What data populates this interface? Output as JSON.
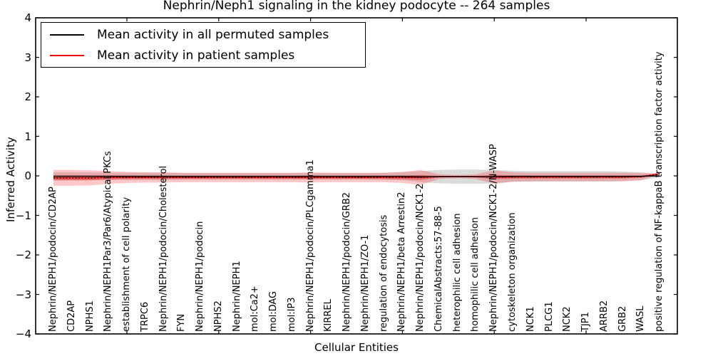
{
  "figure": {
    "title": "Nephrin/Neph1 signaling in the kidney podocyte -- 264 samples",
    "background": "#ffffff"
  },
  "legend": {
    "position": "upper left",
    "entries": [
      {
        "label": "Mean activity in all permuted samples",
        "color": "#000000"
      },
      {
        "label": "Mean activity in patient samples",
        "color": "#ff0000"
      }
    ]
  },
  "axes": {
    "ylabel": "Inferred Activity",
    "xlabel": "Cellular Entities",
    "ytick_labels": [
      "4",
      "3",
      "2",
      "1",
      "0",
      "−1",
      "−2",
      "−3",
      "−4"
    ],
    "frame_color": "#000000"
  },
  "colors": {
    "patient_line": "#ff0000",
    "permuted_line": "#000000",
    "zero_dotted_line": "#000000",
    "patient_band_outer": "rgba(255,0,0,0.22)",
    "patient_band_core": "rgba(235,0,0,0.38)",
    "permuted_band": "rgba(110,110,110,0.25)"
  },
  "chart_data": {
    "type": "line",
    "title": "Nephrin/Neph1 signaling in the kidney podocyte -- 264 samples",
    "xlabel": "Cellular Entities",
    "ylabel": "Inferred Activity",
    "ylim": [
      -4,
      4
    ],
    "yticks": [
      4,
      3,
      2,
      1,
      0,
      -1,
      -2,
      -3,
      -4
    ],
    "xtick_major_indices": [
      4,
      9,
      14,
      19,
      24,
      29
    ],
    "grid": false,
    "legend_position": "upper left",
    "n_points": 34,
    "categories": [
      "Nephrin/NEPH1/podocin/CD2AP",
      "CD2AP",
      "NPHS1",
      "Nephrin/NEPH1Par3/Par6/Atypical PKCs",
      "establishment of cell polarity",
      "TRPC6",
      "Nephrin/NEPH1/podocin/Cholesterol",
      "FYN",
      "Nephrin/NEPH1/podocin",
      "NPHS2",
      "Nephrin/NEPH1",
      "mol:Ca2+",
      "mol:DAG",
      "mol:IP3",
      "Nephrin/NEPH1/podocin/PLCgamma1",
      "KIRREL",
      "Nephrin/NEPH1/podocin/GRB2",
      "Nephrin/NEPH1/ZO-1",
      "regulation of endocytosis",
      "Nephrin/NEPH1/beta Arrestin2",
      "Nephrin/NEPH1/podocin/NCK1-2",
      "ChemicalAbstracts:57-88-5",
      "heterophilic cell adhesion",
      "homophilic cell adhesion",
      "Nephrin/NEPH1/podocin/NCK1-2/N-WASP",
      "cytoskeleton organization",
      "NCK1",
      "PLCG1",
      "NCK2",
      "TJP1",
      "ARRB2",
      "GRB2",
      "WASL",
      "positive regulation of NF-kappaB transcription factor activity"
    ],
    "series": [
      {
        "name": "Mean activity in all permuted samples",
        "style": "solid",
        "color": "#000000",
        "mean": [
          -0.01,
          -0.01,
          -0.01,
          -0.01,
          -0.01,
          -0.01,
          -0.01,
          -0.01,
          -0.01,
          -0.01,
          -0.01,
          -0.01,
          -0.01,
          -0.01,
          -0.01,
          -0.01,
          -0.01,
          -0.01,
          -0.01,
          -0.01,
          -0.02,
          -0.02,
          -0.02,
          -0.02,
          -0.02,
          -0.01,
          -0.01,
          -0.01,
          -0.01,
          -0.01,
          -0.01,
          -0.01,
          -0.01,
          0.0
        ],
        "std": [
          0.1,
          0.1,
          0.1,
          0.09,
          0.09,
          0.09,
          0.09,
          0.08,
          0.08,
          0.08,
          0.08,
          0.08,
          0.08,
          0.08,
          0.08,
          0.08,
          0.08,
          0.08,
          0.09,
          0.1,
          0.14,
          0.17,
          0.18,
          0.18,
          0.17,
          0.14,
          0.13,
          0.13,
          0.13,
          0.13,
          0.13,
          0.12,
          0.1,
          0.04
        ]
      },
      {
        "name": "Mean activity in patient samples",
        "style": "solid",
        "color": "#ff0000",
        "mean": [
          -0.05,
          -0.05,
          -0.05,
          -0.04,
          -0.04,
          -0.04,
          -0.04,
          -0.04,
          -0.04,
          -0.04,
          -0.04,
          -0.04,
          -0.04,
          -0.04,
          -0.04,
          -0.04,
          -0.04,
          -0.04,
          -0.04,
          -0.04,
          -0.04,
          -0.02,
          -0.02,
          -0.02,
          -0.03,
          -0.03,
          -0.03,
          -0.03,
          -0.03,
          -0.03,
          -0.03,
          -0.03,
          -0.02,
          0.05
        ],
        "std": [
          0.2,
          0.2,
          0.19,
          0.16,
          0.14,
          0.13,
          0.13,
          0.12,
          0.12,
          0.12,
          0.12,
          0.12,
          0.12,
          0.12,
          0.13,
          0.12,
          0.12,
          0.12,
          0.12,
          0.14,
          0.19,
          0.06,
          0.04,
          0.06,
          0.17,
          0.12,
          0.11,
          0.11,
          0.11,
          0.11,
          0.11,
          0.11,
          0.09,
          0.02
        ]
      }
    ]
  }
}
